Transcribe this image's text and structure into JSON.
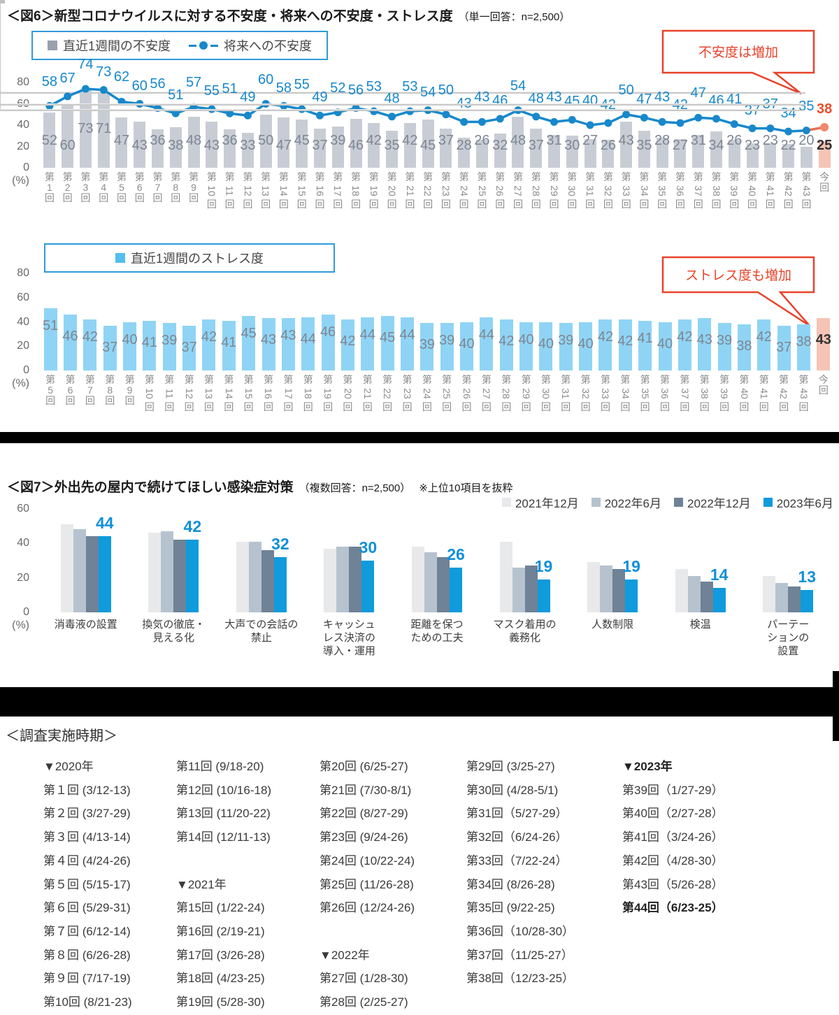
{
  "fig6_header": {
    "title": "＜図6＞新型コロナウイルスに対する不安度・将来への不安度・ストレス度",
    "note": "（単一回答：n=2,500）"
  },
  "fig7_header": {
    "title": "＜図7＞外出先の屋内で続けてほしい感染症対策",
    "note": "（複数回答：n=2,500）",
    "note2": "※上位10項目を抜粋"
  },
  "survey_heading": "＜調査実施時期＞",
  "colors": {
    "gray_bar": "#c8cdd5",
    "highlight_bar": "#f5c4b5",
    "line_blue": "#1888cb",
    "line_red_segment": "#ed6e50",
    "marker_red": "#f1876c",
    "callout_red": "#e8432a",
    "stress_bar": "#8fd4f5",
    "stress_swatch": "#54beee",
    "anxiety_swatch": "#98a1ad",
    "fig7_label_blue": "#1090d8"
  },
  "chart_data": [
    {
      "type": "bar+line",
      "title": "＜図6＞新型コロナウイルスに対する不安度・将来への不安度・ストレス度（単一回答：n=2,500）",
      "ylabel": "(%)",
      "ylim": [
        0,
        80
      ],
      "yticks": [
        80,
        60,
        40,
        20,
        0
      ],
      "annotation": "不安度は増加",
      "categories": [
        "第1回",
        "第2回",
        "第3回",
        "第4回",
        "第5回",
        "第6回",
        "第7回",
        "第8回",
        "第9回",
        "第10回",
        "第11回",
        "第12回",
        "第13回",
        "第14回",
        "第15回",
        "第16回",
        "第17回",
        "第18回",
        "第19回",
        "第20回",
        "第21回",
        "第22回",
        "第23回",
        "第24回",
        "第25回",
        "第26回",
        "第27回",
        "第28回",
        "第29回",
        "第30回",
        "第31回",
        "第32回",
        "第33回",
        "第34回",
        "第35回",
        "第36回",
        "第37回",
        "第38回",
        "第39回",
        "第40回",
        "第41回",
        "第42回",
        "第43回",
        "今回"
      ],
      "series": [
        {
          "name": "直近1週間の不安度",
          "type": "bar",
          "values": [
            52,
            60,
            73,
            71,
            47,
            43,
            36,
            38,
            48,
            43,
            36,
            33,
            50,
            47,
            45,
            37,
            39,
            46,
            42,
            35,
            42,
            45,
            37,
            28,
            26,
            32,
            48,
            37,
            31,
            30,
            27,
            26,
            43,
            35,
            28,
            27,
            31,
            34,
            26,
            23,
            23,
            22,
            20,
            25
          ]
        },
        {
          "name": "将来への不安度",
          "type": "line",
          "values": [
            58,
            67,
            74,
            73,
            62,
            60,
            56,
            51,
            57,
            55,
            51,
            49,
            60,
            58,
            55,
            49,
            52,
            56,
            53,
            48,
            53,
            54,
            50,
            43,
            43,
            46,
            54,
            48,
            43,
            45,
            40,
            42,
            50,
            47,
            43,
            42,
            47,
            46,
            41,
            37,
            37,
            34,
            35,
            38
          ]
        }
      ]
    },
    {
      "type": "bar",
      "title": "直近1週間のストレス度",
      "ylabel": "(%)",
      "ylim": [
        0,
        80
      ],
      "yticks": [
        80,
        60,
        40,
        20,
        0
      ],
      "annotation": "ストレス度も増加",
      "categories": [
        "第5回",
        "第6回",
        "第7回",
        "第8回",
        "第9回",
        "第10回",
        "第11回",
        "第12回",
        "第13回",
        "第14回",
        "第15回",
        "第16回",
        "第17回",
        "第18回",
        "第19回",
        "第20回",
        "第21回",
        "第22回",
        "第23回",
        "第24回",
        "第25回",
        "第26回",
        "第27回",
        "第28回",
        "第29回",
        "第30回",
        "第31回",
        "第32回",
        "第33回",
        "第34回",
        "第35回",
        "第36回",
        "第37回",
        "第38回",
        "第39回",
        "第40回",
        "第41回",
        "第42回",
        "第43回",
        "今回"
      ],
      "series": [
        {
          "name": "直近1週間のストレス度",
          "type": "bar",
          "values": [
            51,
            46,
            42,
            37,
            40,
            41,
            39,
            37,
            42,
            41,
            45,
            43,
            43,
            44,
            46,
            42,
            44,
            45,
            44,
            39,
            39,
            40,
            44,
            42,
            40,
            40,
            39,
            40,
            42,
            42,
            41,
            40,
            42,
            43,
            39,
            38,
            42,
            37,
            38,
            43
          ]
        }
      ]
    },
    {
      "type": "bar",
      "title": "＜図7＞外出先の屋内で続けてほしい感染症対策（複数回答：n=2,500）※上位10項目を抜粋",
      "ylabel": "(%)",
      "ylim": [
        0,
        60
      ],
      "yticks": [
        60,
        40,
        20,
        0
      ],
      "categories": [
        "消毒液の設置",
        "換気の徹底・見える化",
        "大声での会話の禁止",
        "キャッシュレス決済の導入・運用",
        "距離を保つための工夫",
        "マスク着用の義務化",
        "人数制限",
        "検温",
        "パーテーションの設置"
      ],
      "category_lines": [
        [
          "消毒液の設置"
        ],
        [
          "換気の徹底・",
          "見える化"
        ],
        [
          "大声での会話の",
          "禁止"
        ],
        [
          "キャッシュ",
          "レス決済の",
          "導入・運用"
        ],
        [
          "距離を保つ",
          "ための工夫"
        ],
        [
          "マスク着用の",
          "義務化"
        ],
        [
          "人数制限"
        ],
        [
          "検温"
        ],
        [
          "パーテー",
          "ションの",
          "設置"
        ]
      ],
      "series": [
        {
          "name": "2021年12月",
          "color": "#e8e9eb",
          "values": [
            51,
            46,
            41,
            37,
            38,
            41,
            29,
            25,
            21
          ]
        },
        {
          "name": "2022年6月",
          "color": "#b6c3cf",
          "values": [
            48,
            47,
            41,
            38,
            35,
            26,
            27,
            21,
            17
          ]
        },
        {
          "name": "2022年12月",
          "color": "#6f8296",
          "values": [
            44,
            42,
            36,
            38,
            32,
            27,
            25,
            18,
            15
          ]
        },
        {
          "name": "2023年6月",
          "color": "#0f9bdc",
          "values": [
            44,
            42,
            32,
            30,
            26,
            19,
            19,
            14,
            13
          ]
        }
      ],
      "value_labels": [
        44,
        42,
        32,
        30,
        26,
        19,
        19,
        14,
        13
      ]
    }
  ],
  "survey_table": {
    "columns": [
      [
        "▼2020年",
        "第１回 (3/12-13)",
        "第２回 (3/27-29)",
        "第３回 (4/13-14)",
        "第４回 (4/24-26)",
        "第５回 (5/15-17)",
        "第６回 (5/29-31)",
        "第７回 (6/12-14)",
        "第８回 (6/26-28)",
        "第９回 (7/17-19)",
        "第10回 (8/21-23)"
      ],
      [
        "第11回 (9/18-20)",
        "第12回 (10/16-18)",
        "第13回 (11/20-22)",
        "第14回 (12/11-13)",
        "",
        "▼2021年",
        "第15回 (1/22-24)",
        "第16回 (2/19-21)",
        "第17回 (3/26-28)",
        "第18回 (4/23-25)",
        "第19回 (5/28-30)"
      ],
      [
        "第20回 (6/25-27)",
        "第21回 (7/30-8/1)",
        "第22回 (8/27-29)",
        "第23回 (9/24-26)",
        "第24回 (10/22-24)",
        "第25回 (11/26-28)",
        "第26回 (12/24-26)",
        "",
        "▼2022年",
        "第27回 (1/28-30)",
        "第28回 (2/25-27)"
      ],
      [
        "第29回 (3/25-27)",
        "第30回 (4/28-5/1)",
        "第31回（5/27-29）",
        "第32回（6/24-26）",
        "第33回（7/22-24）",
        "第34回 (8/26-28)",
        "第35回 (9/22-25)",
        "第36回（10/28-30）",
        "第37回（11/25-27）",
        "第38回（12/23-25）",
        ""
      ],
      [
        {
          "t": "▼2023年",
          "b": true
        },
        "第39回（1/27-29）",
        "第40回（2/27-28）",
        "第41回（3/24-26）",
        "第42回（4/28-30）",
        "第43回（5/26-28）",
        {
          "t": "第44回（6/23-25）",
          "b": true
        },
        "",
        "",
        "",
        ""
      ]
    ]
  }
}
